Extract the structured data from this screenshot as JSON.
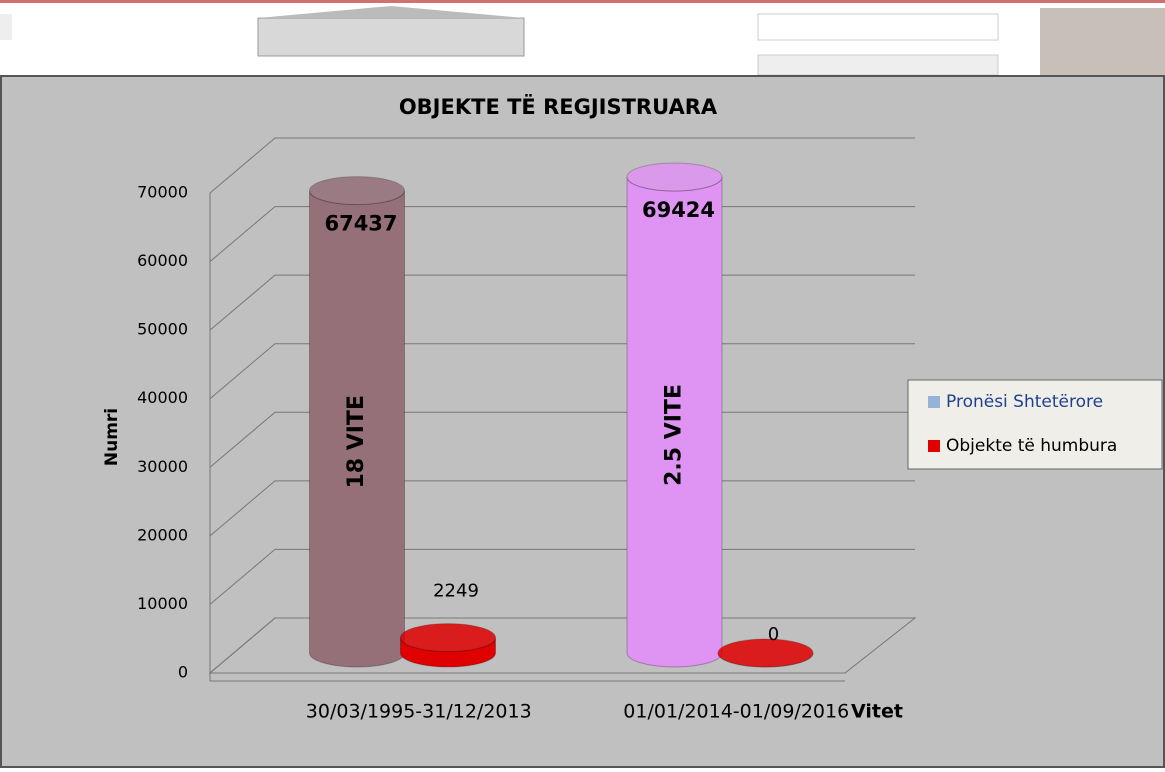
{
  "chart_data": {
    "type": "cylinder",
    "title": "OBJEKTE TË REGJISTRUARA",
    "y_label": "Numri",
    "x_label": "Vitet",
    "categories": [
      "30/03/1995-31/12/2013",
      "01/01/2014-01/09/2016"
    ],
    "series": [
      {
        "name": "Pronësi Shtetërore",
        "color": "#95b3d7",
        "bar_colors": [
          "#957079",
          "#df93f2"
        ],
        "values": [
          67437,
          69424
        ],
        "bar_annotations": [
          "18 VITE",
          "2.5 VITE"
        ]
      },
      {
        "name": "Objekte të humbura",
        "color": "#e00000",
        "bar_colors": [
          "#e00000",
          "#e00000"
        ],
        "values": [
          2249,
          0
        ]
      }
    ],
    "ylim": [
      0,
      70000
    ],
    "yticks": [
      0,
      10000,
      20000,
      30000,
      40000,
      50000,
      60000,
      70000
    ],
    "grid": true
  }
}
